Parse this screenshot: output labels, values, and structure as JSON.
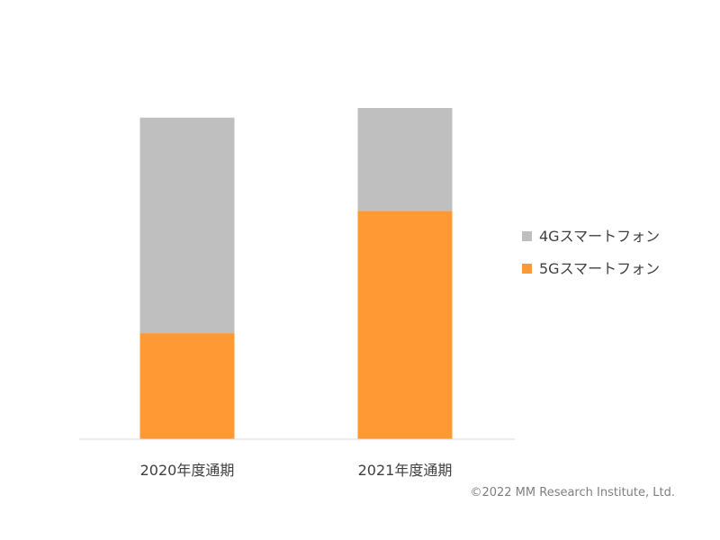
{
  "chart_data": {
    "type": "bar",
    "stacked": true,
    "categories": [
      "2020年度通期",
      "2021年度通期"
    ],
    "series": [
      {
        "name": "5Gスマートフォン",
        "values": [
          33,
          71
        ],
        "color": "#FF9933"
      },
      {
        "name": "4Gスマートフォン",
        "values": [
          67,
          32
        ],
        "color": "#BFBFBF"
      }
    ],
    "ylim": [
      0,
      100
    ],
    "grid": false,
    "legend_position": "right",
    "legend_order": [
      "4Gスマートフォン",
      "5Gスマートフォン"
    ]
  },
  "copyright": "©2022 MM Research Institute, Ltd."
}
